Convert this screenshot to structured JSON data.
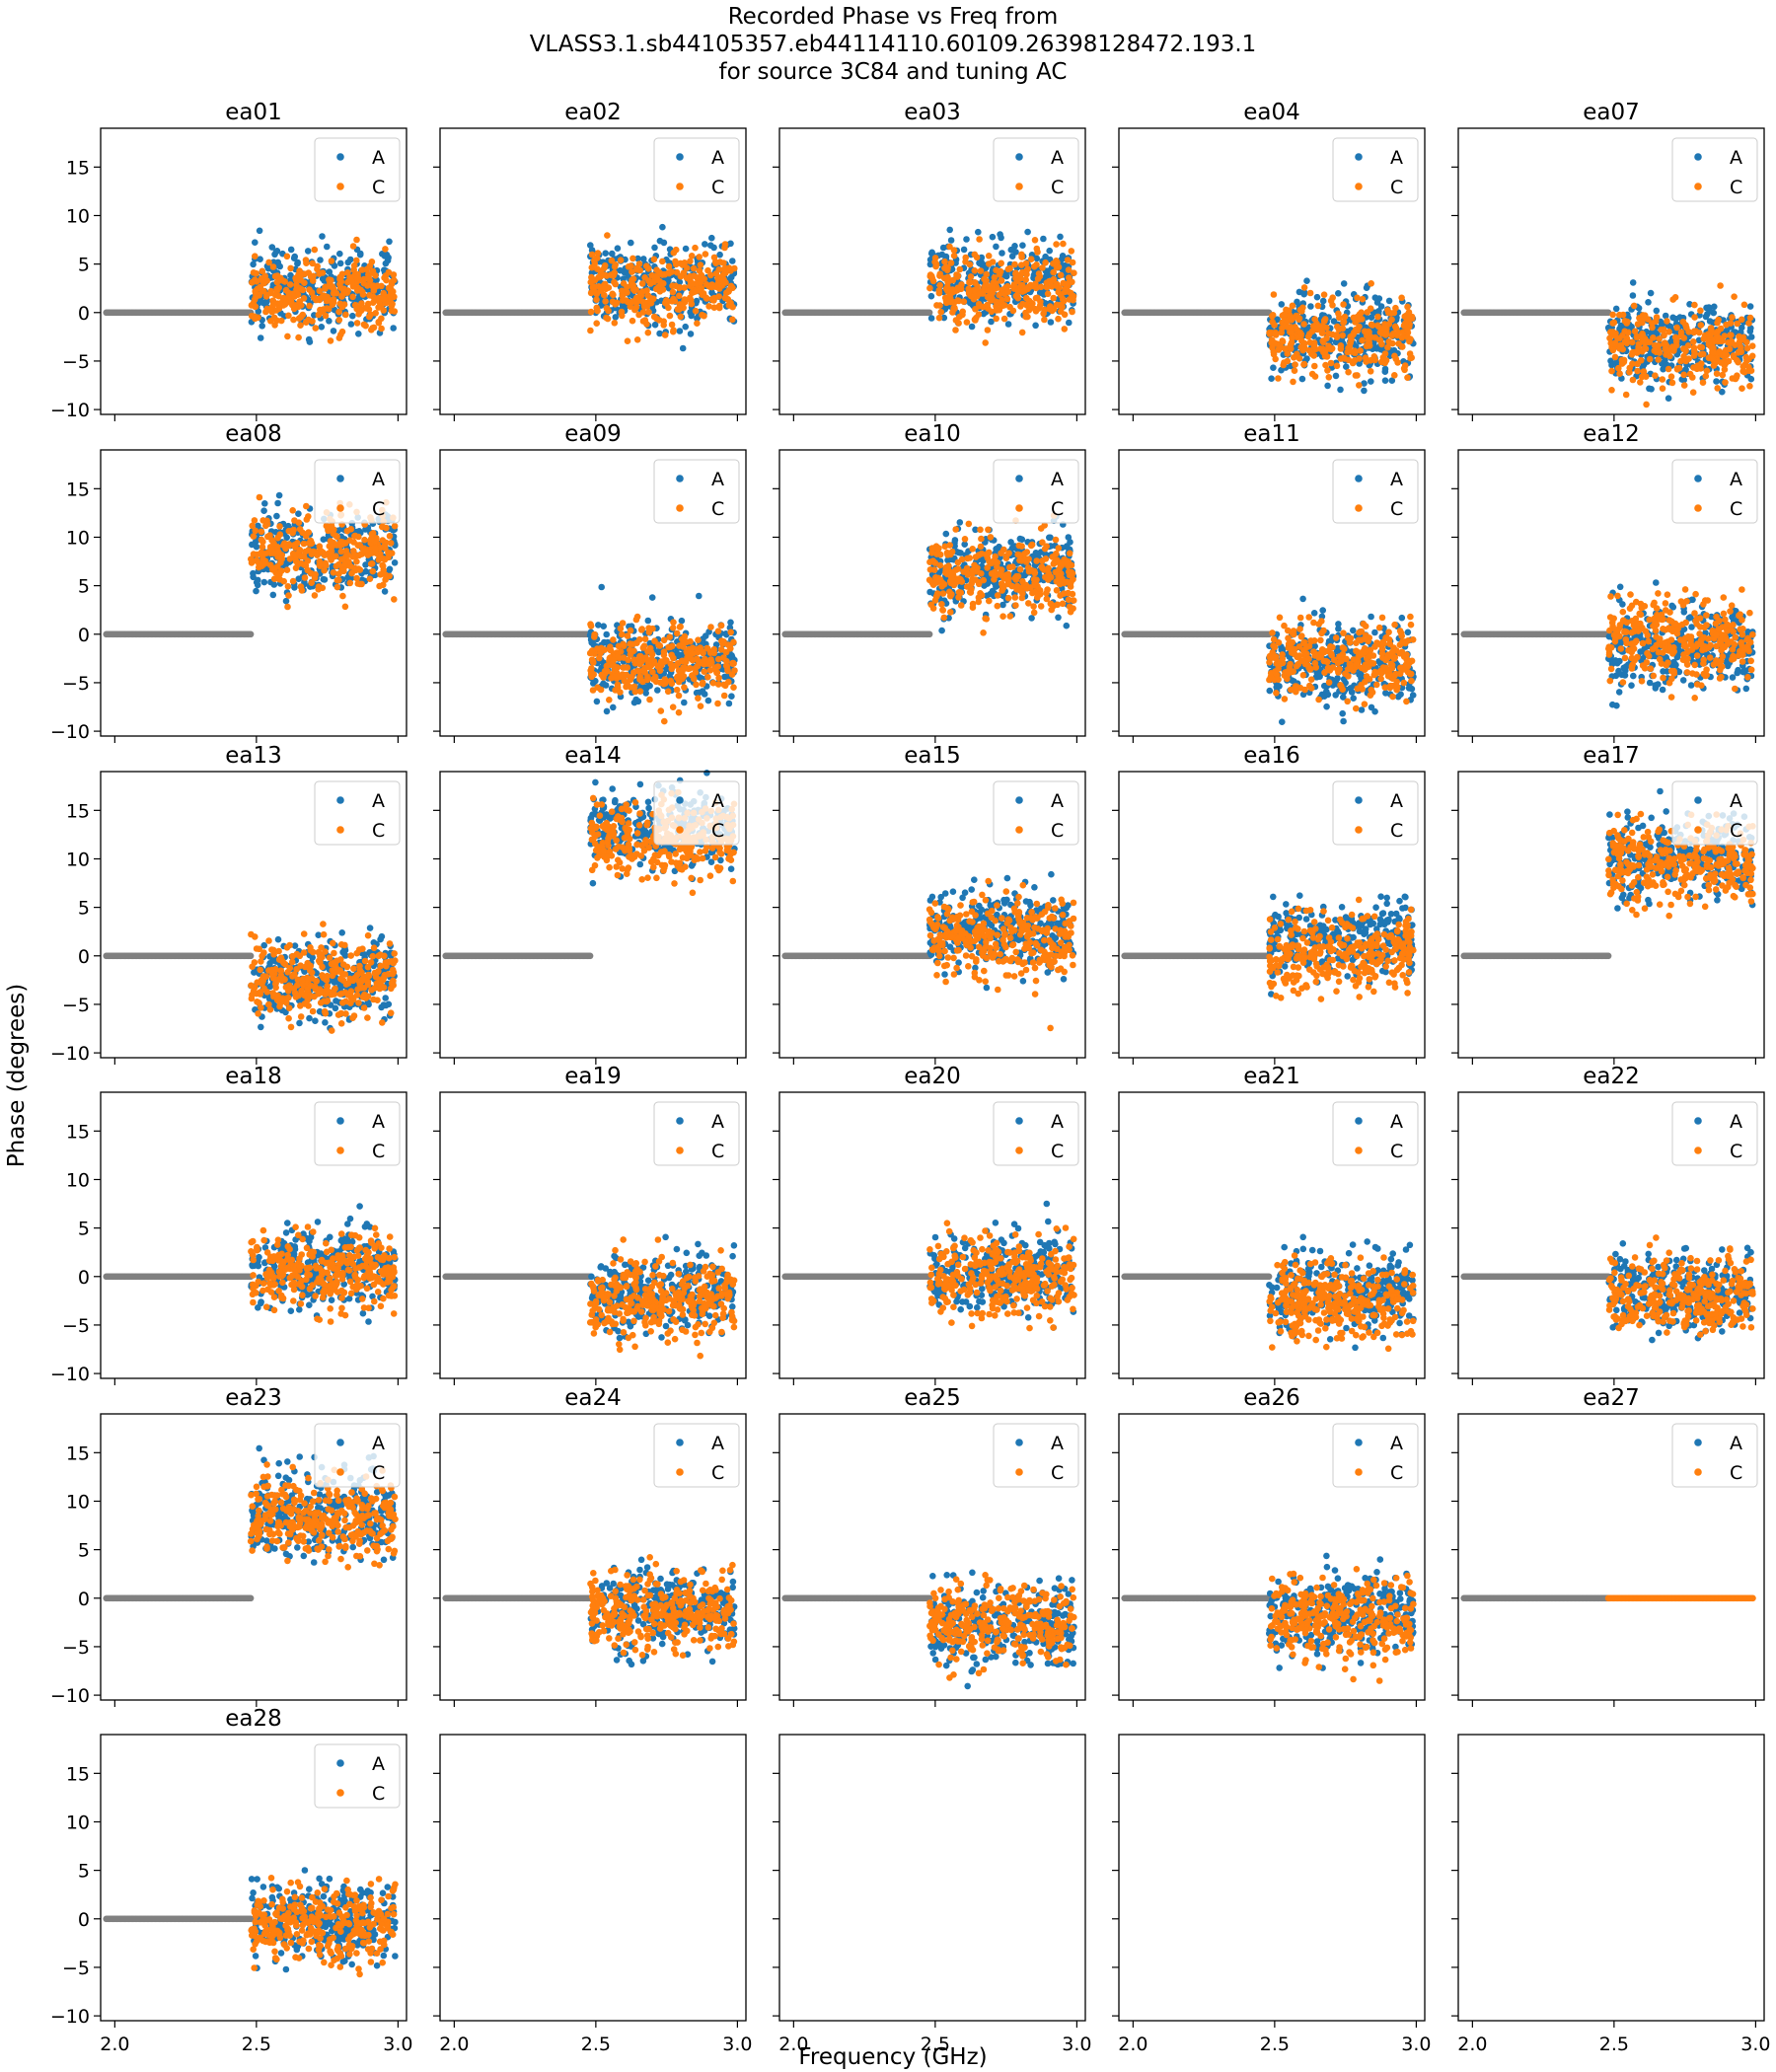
{
  "chart_data": {
    "type": "scatter",
    "title": [
      "Recorded Phase vs Freq from",
      "VLASS3.1.sb44105357.eb44114110.60109.26398128472.193.1",
      "for source 3C84 and  tuning AC"
    ],
    "xlabel": "Frequency (GHz)",
    "ylabel": "Phase (degrees)",
    "xlim": [
      1.95,
      3.03
    ],
    "ylim": [
      -10.5,
      19
    ],
    "xticks": [
      2.0,
      2.5,
      3.0
    ],
    "xtick_labels": [
      "2.0",
      "2.5",
      "3.0"
    ],
    "yticks": [
      -10,
      -5,
      0,
      5,
      10,
      15
    ],
    "ytick_labels": [
      "−10",
      "−5",
      "0",
      "5",
      "10",
      "15"
    ],
    "grid": false,
    "legend_position": "upper right",
    "layout": {
      "rows": 6,
      "cols": 5
    },
    "colors": {
      "A": "#1f77b4",
      "C": "#ff7f0e",
      "flagged": "#808080"
    },
    "series_names": [
      "A",
      "C"
    ],
    "flagged_range_ghz": [
      1.97,
      2.48
    ],
    "data_range_ghz": [
      2.48,
      2.99
    ],
    "panels": [
      {
        "antenna": "ea01",
        "mean_A": 2.5,
        "mean_C": 2.0,
        "spread": 2.0
      },
      {
        "antenna": "ea02",
        "mean_A": 3.0,
        "mean_C": 2.5,
        "spread": 2.0
      },
      {
        "antenna": "ea03",
        "mean_A": 3.0,
        "mean_C": 2.5,
        "spread": 2.0
      },
      {
        "antenna": "ea04",
        "mean_A": -2.5,
        "mean_C": -2.5,
        "spread": 2.0
      },
      {
        "antenna": "ea07",
        "mean_A": -3.0,
        "mean_C": -3.5,
        "spread": 2.0
      },
      {
        "antenna": "ea08",
        "mean_A": 8.5,
        "mean_C": 8.5,
        "spread": 2.0
      },
      {
        "antenna": "ea09",
        "mean_A": -2.5,
        "mean_C": -3.0,
        "spread": 2.0
      },
      {
        "antenna": "ea10",
        "mean_A": 6.5,
        "mean_C": 6.0,
        "spread": 2.0
      },
      {
        "antenna": "ea11",
        "mean_A": -3.0,
        "mean_C": -2.5,
        "spread": 2.0
      },
      {
        "antenna": "ea12",
        "mean_A": -1.5,
        "mean_C": -0.5,
        "spread": 2.0
      },
      {
        "antenna": "ea13",
        "mean_A": -2.5,
        "mean_C": -2.5,
        "spread": 2.0
      },
      {
        "antenna": "ea14",
        "mean_A": 13.0,
        "mean_C": 12.0,
        "spread": 2.0
      },
      {
        "antenna": "ea15",
        "mean_A": 2.5,
        "mean_C": 2.0,
        "spread": 2.0
      },
      {
        "antenna": "ea16",
        "mean_A": 1.5,
        "mean_C": 0.5,
        "spread": 2.0
      },
      {
        "antenna": "ea17",
        "mean_A": 10.0,
        "mean_C": 9.5,
        "spread": 2.0
      },
      {
        "antenna": "ea18",
        "mean_A": 1.0,
        "mean_C": 0.5,
        "spread": 2.0
      },
      {
        "antenna": "ea19",
        "mean_A": -1.5,
        "mean_C": -2.5,
        "spread": 2.0
      },
      {
        "antenna": "ea20",
        "mean_A": 0.5,
        "mean_C": 0.0,
        "spread": 2.0
      },
      {
        "antenna": "ea21",
        "mean_A": -1.5,
        "mean_C": -2.5,
        "spread": 2.0
      },
      {
        "antenna": "ea22",
        "mean_A": -1.5,
        "mean_C": -2.0,
        "spread": 2.0
      },
      {
        "antenna": "ea23",
        "mean_A": 8.5,
        "mean_C": 8.0,
        "spread": 2.0
      },
      {
        "antenna": "ea24",
        "mean_A": -1.0,
        "mean_C": -1.5,
        "spread": 2.0
      },
      {
        "antenna": "ea25",
        "mean_A": -3.0,
        "mean_C": -2.5,
        "spread": 2.0
      },
      {
        "antenna": "ea26",
        "mean_A": -1.5,
        "mean_C": -2.0,
        "spread": 2.0
      },
      {
        "antenna": "ea27",
        "mean_A": 0.0,
        "mean_C": 0.0,
        "spread": 0.0,
        "all_zero": true
      },
      {
        "antenna": "ea28",
        "mean_A": -0.5,
        "mean_C": -0.5,
        "spread": 2.0
      }
    ]
  }
}
